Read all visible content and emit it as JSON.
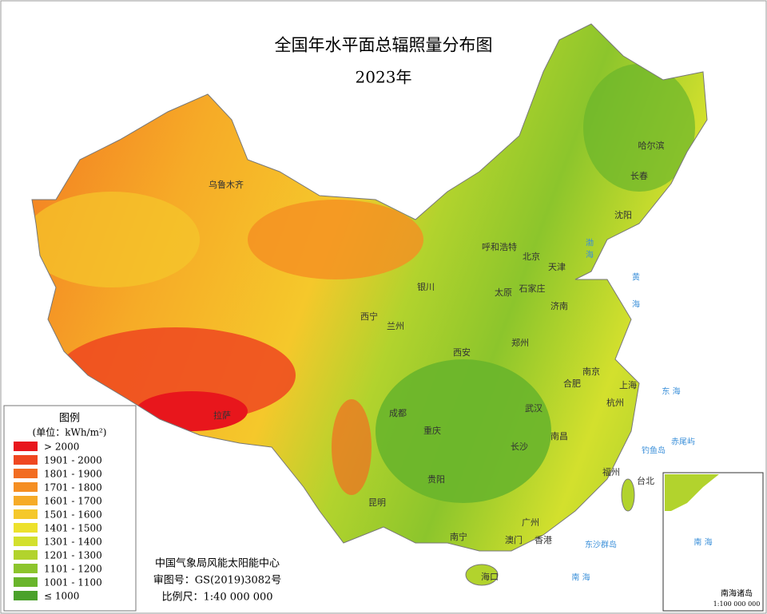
{
  "title": "全国年水平面总辐照量分布图",
  "subtitle": "2023年",
  "legend": {
    "title": "图例",
    "unit": "(单位：kWh/m²)",
    "items": [
      {
        "label": "> 2000",
        "color": "#e8161c"
      },
      {
        "label": "1901 - 2000",
        "color": "#ef4720"
      },
      {
        "label": "1801 - 1900",
        "color": "#f26c21"
      },
      {
        "label": "1701 - 1800",
        "color": "#f58e22"
      },
      {
        "label": "1601 - 1700",
        "color": "#f6ab27"
      },
      {
        "label": "1501 - 1600",
        "color": "#f5c82b"
      },
      {
        "label": "1401 - 1500",
        "color": "#ede12c"
      },
      {
        "label": "1301 - 1400",
        "color": "#d3e02d"
      },
      {
        "label": "1201 - 1300",
        "color": "#b2d32d"
      },
      {
        "label": "1101 - 1200",
        "color": "#8cc52c"
      },
      {
        "label": "1001 - 1100",
        "color": "#69b52b"
      },
      {
        "label": "≤ 1000",
        "color": "#4aa12a"
      }
    ]
  },
  "credits": [
    "中国气象局风能太阳能中心",
    "审图号：GS(2019)3082号",
    "比例尺：1:40 000 000"
  ],
  "cities": [
    "乌鲁木齐",
    "哈尔滨",
    "长春",
    "沈阳",
    "呼和浩特",
    "北京",
    "天津",
    "银川",
    "太原",
    "石家庄",
    "济南",
    "西宁",
    "兰州",
    "西安",
    "郑州",
    "南京",
    "合肥",
    "上海",
    "拉萨",
    "成都",
    "重庆",
    "武汉",
    "杭州",
    "南昌",
    "长沙",
    "福州",
    "台北",
    "贵阳",
    "昆明",
    "南宁",
    "广州",
    "澳门",
    "香港",
    "海口"
  ],
  "seas": [
    "渤",
    "海",
    "黄",
    "海",
    "东 海",
    "南 海",
    "钓鱼岛",
    "赤尾屿",
    "东沙群岛"
  ],
  "inset": {
    "sea": "南 海",
    "title": "南海诸岛",
    "scale": "1:100 000 000"
  }
}
